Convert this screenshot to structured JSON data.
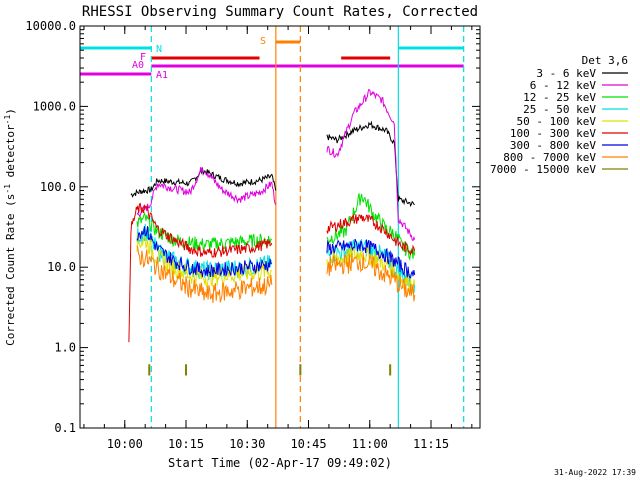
{
  "chart_data": {
    "type": "line",
    "title": "RHESSI Observing Summary Count Rates, Corrected",
    "xlabel": "Start Time (02-Apr-17 09:49:02)",
    "ylabel_main": "Corrected Count Rate (s",
    "ylabel_sup": "-1",
    "ylabel_mid": " detector",
    "ylabel_end": ")",
    "y_scale": "log",
    "ylim": [
      0.1,
      10000
    ],
    "xlim": [
      "09:49:02",
      "11:27:00"
    ],
    "x_ticks": [
      "10:00",
      "10:15",
      "10:30",
      "10:45",
      "11:00",
      "11:15"
    ],
    "y_ticks": [
      "0.1",
      "1.0",
      "10.0",
      "100.0",
      "1000.0",
      "10000.0"
    ],
    "footer": "31-Aug-2022 17:39",
    "legend": {
      "title": "Det 3,6",
      "placement": "right",
      "entries": [
        {
          "label": "3 - 6 keV",
          "color": "#000000"
        },
        {
          "label": "6 - 12 keV",
          "color": "#e000e0"
        },
        {
          "label": "12 - 25 keV",
          "color": "#00e000"
        },
        {
          "label": "25 - 50 keV",
          "color": "#00e0e0"
        },
        {
          "label": "50 - 100 keV",
          "color": "#e0e000"
        },
        {
          "label": "100 - 300 keV",
          "color": "#e00000"
        },
        {
          "label": "300 - 800 keV",
          "color": "#0000e0"
        },
        {
          "label": "800 - 7000 keV",
          "color": "#ff8000"
        },
        {
          "label": "7000 - 15000 keV",
          "color": "#808000"
        }
      ]
    },
    "flag_labels": {
      "n": "N",
      "f": "F",
      "a0": "A0",
      "a1": "A1",
      "s": "S"
    },
    "flags": [
      {
        "name": "night",
        "color": "#00e0e0",
        "segments": [
          [
            "09:49:02",
            "10:06:30"
          ],
          [
            "11:07:00",
            "11:23:00"
          ]
        ]
      },
      {
        "name": "flare",
        "color": "#e00000",
        "segments": [
          [
            "10:06:30",
            "10:33:00"
          ],
          [
            "10:53:00",
            "11:05:00"
          ]
        ]
      },
      {
        "name": "attenuator",
        "color": "#e000e0",
        "segments": [
          [
            "09:49:02",
            "10:06:30"
          ],
          [
            "10:06:30",
            "11:23:00"
          ]
        ]
      },
      {
        "name": "saa",
        "color": "#ff8000",
        "segments": [
          [
            "10:37:00",
            "10:43:00"
          ]
        ]
      }
    ],
    "markers": [
      {
        "time": "10:06:30",
        "color": "#00e0e0",
        "style": "dashed"
      },
      {
        "time": "10:37:00",
        "color": "#ff8000",
        "style": "solid"
      },
      {
        "time": "10:43:00",
        "color": "#ff8000",
        "style": "dashed"
      },
      {
        "time": "11:07:00",
        "color": "#00e0e0",
        "style": "solid"
      },
      {
        "time": "11:23:00",
        "color": "#00e0e0",
        "style": "dashed"
      }
    ],
    "series": [
      {
        "name": "3 - 6 keV",
        "color": "#000000",
        "segments": [
          [
            [
              "10:01:30",
              80
            ],
            [
              "10:04:00",
              88
            ],
            [
              "10:06:30",
              92
            ],
            [
              "10:08:00",
              120
            ],
            [
              "10:12:00",
              115
            ],
            [
              "10:16:00",
              110
            ],
            [
              "10:19:00",
              160
            ],
            [
              "10:24:00",
              125
            ],
            [
              "10:28:00",
              110
            ],
            [
              "10:33:00",
              120
            ],
            [
              "10:36:00",
              135
            ],
            [
              "10:37:00",
              90
            ]
          ],
          [
            [
              "10:49:30",
              420
            ],
            [
              "10:52:00",
              380
            ],
            [
              "10:56:00",
              500
            ],
            [
              "11:00:00",
              600
            ],
            [
              "11:04:00",
              500
            ],
            [
              "11:06:00",
              350
            ],
            [
              "11:07:00",
              70
            ],
            [
              "11:09:00",
              65
            ],
            [
              "11:11:00",
              60
            ]
          ]
        ]
      },
      {
        "name": "6 - 12 keV",
        "color": "#e000e0",
        "segments": [
          [
            [
              "10:03:00",
              45
            ],
            [
              "10:06:00",
              58
            ],
            [
              "10:08:00",
              110
            ],
            [
              "10:12:00",
              95
            ],
            [
              "10:16:00",
              85
            ],
            [
              "10:19:00",
              175
            ],
            [
              "10:24:00",
              90
            ],
            [
              "10:28:00",
              70
            ],
            [
              "10:33:00",
              85
            ],
            [
              "10:36:00",
              110
            ],
            [
              "10:37:00",
              60
            ]
          ],
          [
            [
              "10:49:30",
              300
            ],
            [
              "10:52:00",
              250
            ],
            [
              "10:56:00",
              800
            ],
            [
              "11:00:00",
              1500
            ],
            [
              "11:03:00",
              1200
            ],
            [
              "11:06:00",
              620
            ],
            [
              "11:07:00",
              40
            ],
            [
              "11:09:00",
              30
            ],
            [
              "11:11:00",
              22
            ]
          ]
        ]
      },
      {
        "name": "12 - 25 keV",
        "color": "#00e000",
        "segments": [
          [
            [
              "10:03:00",
              35
            ],
            [
              "10:05:00",
              40
            ],
            [
              "10:08:00",
              28
            ],
            [
              "10:12:00",
              22
            ],
            [
              "10:16:00",
              20
            ],
            [
              "10:20:00",
              19
            ],
            [
              "10:25:00",
              20
            ],
            [
              "10:30:00",
              21
            ],
            [
              "10:36:00",
              22
            ]
          ],
          [
            [
              "10:49:30",
              22
            ],
            [
              "10:54:00",
              28
            ],
            [
              "10:58:00",
              80
            ],
            [
              "11:01:00",
              45
            ],
            [
              "11:04:00",
              30
            ],
            [
              "11:06:00",
              26
            ],
            [
              "11:08:00",
              18
            ],
            [
              "11:11:00",
              14
            ]
          ]
        ]
      },
      {
        "name": "25 - 50 keV",
        "color": "#00e0e0",
        "segments": [
          [
            [
              "10:03:00",
              24
            ],
            [
              "10:05:00",
              28
            ],
            [
              "10:08:00",
              16
            ],
            [
              "10:12:00",
              12
            ],
            [
              "10:16:00",
              10
            ],
            [
              "10:20:00",
              9
            ],
            [
              "10:25:00",
              9.5
            ],
            [
              "10:30:00",
              10
            ],
            [
              "10:36:00",
              11
            ]
          ],
          [
            [
              "10:49:30",
              14
            ],
            [
              "10:54:00",
              16
            ],
            [
              "10:58:00",
              18
            ],
            [
              "11:01:00",
              16
            ],
            [
              "11:04:00",
              13
            ],
            [
              "11:06:00",
              10
            ],
            [
              "11:08:00",
              8
            ],
            [
              "11:11:00",
              6
            ]
          ]
        ]
      },
      {
        "name": "50 - 100 keV",
        "color": "#e0e000",
        "segments": [
          [
            [
              "10:03:00",
              20
            ],
            [
              "10:05:00",
              22
            ],
            [
              "10:08:00",
              13
            ],
            [
              "10:12:00",
              10
            ],
            [
              "10:16:00",
              8
            ],
            [
              "10:20:00",
              7.5
            ],
            [
              "10:25:00",
              8
            ],
            [
              "10:30:00",
              8.5
            ],
            [
              "10:36:00",
              9
            ]
          ],
          [
            [
              "10:49:30",
              12
            ],
            [
              "10:54:00",
              13
            ],
            [
              "10:58:00",
              15
            ],
            [
              "11:01:00",
              13
            ],
            [
              "11:04:00",
              11
            ],
            [
              "11:06:00",
              9
            ],
            [
              "11:08:00",
              7
            ],
            [
              "11:11:00",
              6
            ]
          ]
        ]
      },
      {
        "name": "100 - 300 keV",
        "color": "#e00000",
        "segments": [
          [
            [
              "10:01:00",
              1.0
            ],
            [
              "10:01:30",
              30
            ],
            [
              "10:03:00",
              52
            ],
            [
              "10:05:00",
              55
            ],
            [
              "10:08:00",
              30
            ],
            [
              "10:12:00",
              22
            ],
            [
              "10:16:00",
              17
            ],
            [
              "10:20:00",
              15
            ],
            [
              "10:25:00",
              16
            ],
            [
              "10:30:00",
              17
            ],
            [
              "10:36:00",
              20
            ]
          ],
          [
            [
              "10:49:30",
              30
            ],
            [
              "10:54:00",
              36
            ],
            [
              "10:58:00",
              42
            ],
            [
              "11:01:00",
              36
            ],
            [
              "11:04:00",
              28
            ],
            [
              "11:06:00",
              22
            ],
            [
              "11:08:00",
              18
            ],
            [
              "11:11:00",
              16
            ]
          ]
        ]
      },
      {
        "name": "300 - 800 keV",
        "color": "#0000e0",
        "segments": [
          [
            [
              "10:03:00",
              26
            ],
            [
              "10:05:00",
              30
            ],
            [
              "10:08:00",
              17
            ],
            [
              "10:12:00",
              12
            ],
            [
              "10:16:00",
              10
            ],
            [
              "10:20:00",
              9
            ],
            [
              "10:25:00",
              9.5
            ],
            [
              "10:30:00",
              10
            ],
            [
              "10:36:00",
              11
            ]
          ],
          [
            [
              "10:49:30",
              17
            ],
            [
              "10:54:00",
              18
            ],
            [
              "10:58:00",
              19
            ],
            [
              "11:01:00",
              17
            ],
            [
              "11:04:00",
              14
            ],
            [
              "11:06:00",
              12
            ],
            [
              "11:08:00",
              10
            ],
            [
              "11:11:00",
              8
            ]
          ]
        ]
      },
      {
        "name": "800 - 7000 keV",
        "color": "#ff8000",
        "segments": [
          [
            [
              "10:03:00",
              14
            ],
            [
              "10:05:00",
              13
            ],
            [
              "10:08:00",
              10
            ],
            [
              "10:12:00",
              7
            ],
            [
              "10:16:00",
              5.5
            ],
            [
              "10:20:00",
              4.5
            ],
            [
              "10:25:00",
              5
            ],
            [
              "10:30:00",
              5.5
            ],
            [
              "10:36:00",
              6
            ]
          ],
          [
            [
              "10:49:30",
              10
            ],
            [
              "10:54:00",
              11
            ],
            [
              "10:58:00",
              12
            ],
            [
              "11:01:00",
              10
            ],
            [
              "11:04:00",
              8
            ],
            [
              "11:06:00",
              7
            ],
            [
              "11:08:00",
              5.5
            ],
            [
              "11:11:00",
              4.5
            ]
          ]
        ]
      },
      {
        "name": "7000 - 15000 keV",
        "color": "#808000",
        "segments": [
          [
            [
              "10:06:00",
              0.5
            ],
            [
              "10:06:30",
              0.5
            ]
          ],
          [
            [
              "10:15:00",
              0.5
            ],
            [
              "10:15:30",
              0.5
            ]
          ],
          [
            [
              "10:43:00",
              0.5
            ],
            [
              "10:43:30",
              0.5
            ]
          ],
          [
            [
              "11:05:00",
              0.5
            ],
            [
              "11:05:30",
              0.5
            ]
          ]
        ]
      }
    ]
  }
}
